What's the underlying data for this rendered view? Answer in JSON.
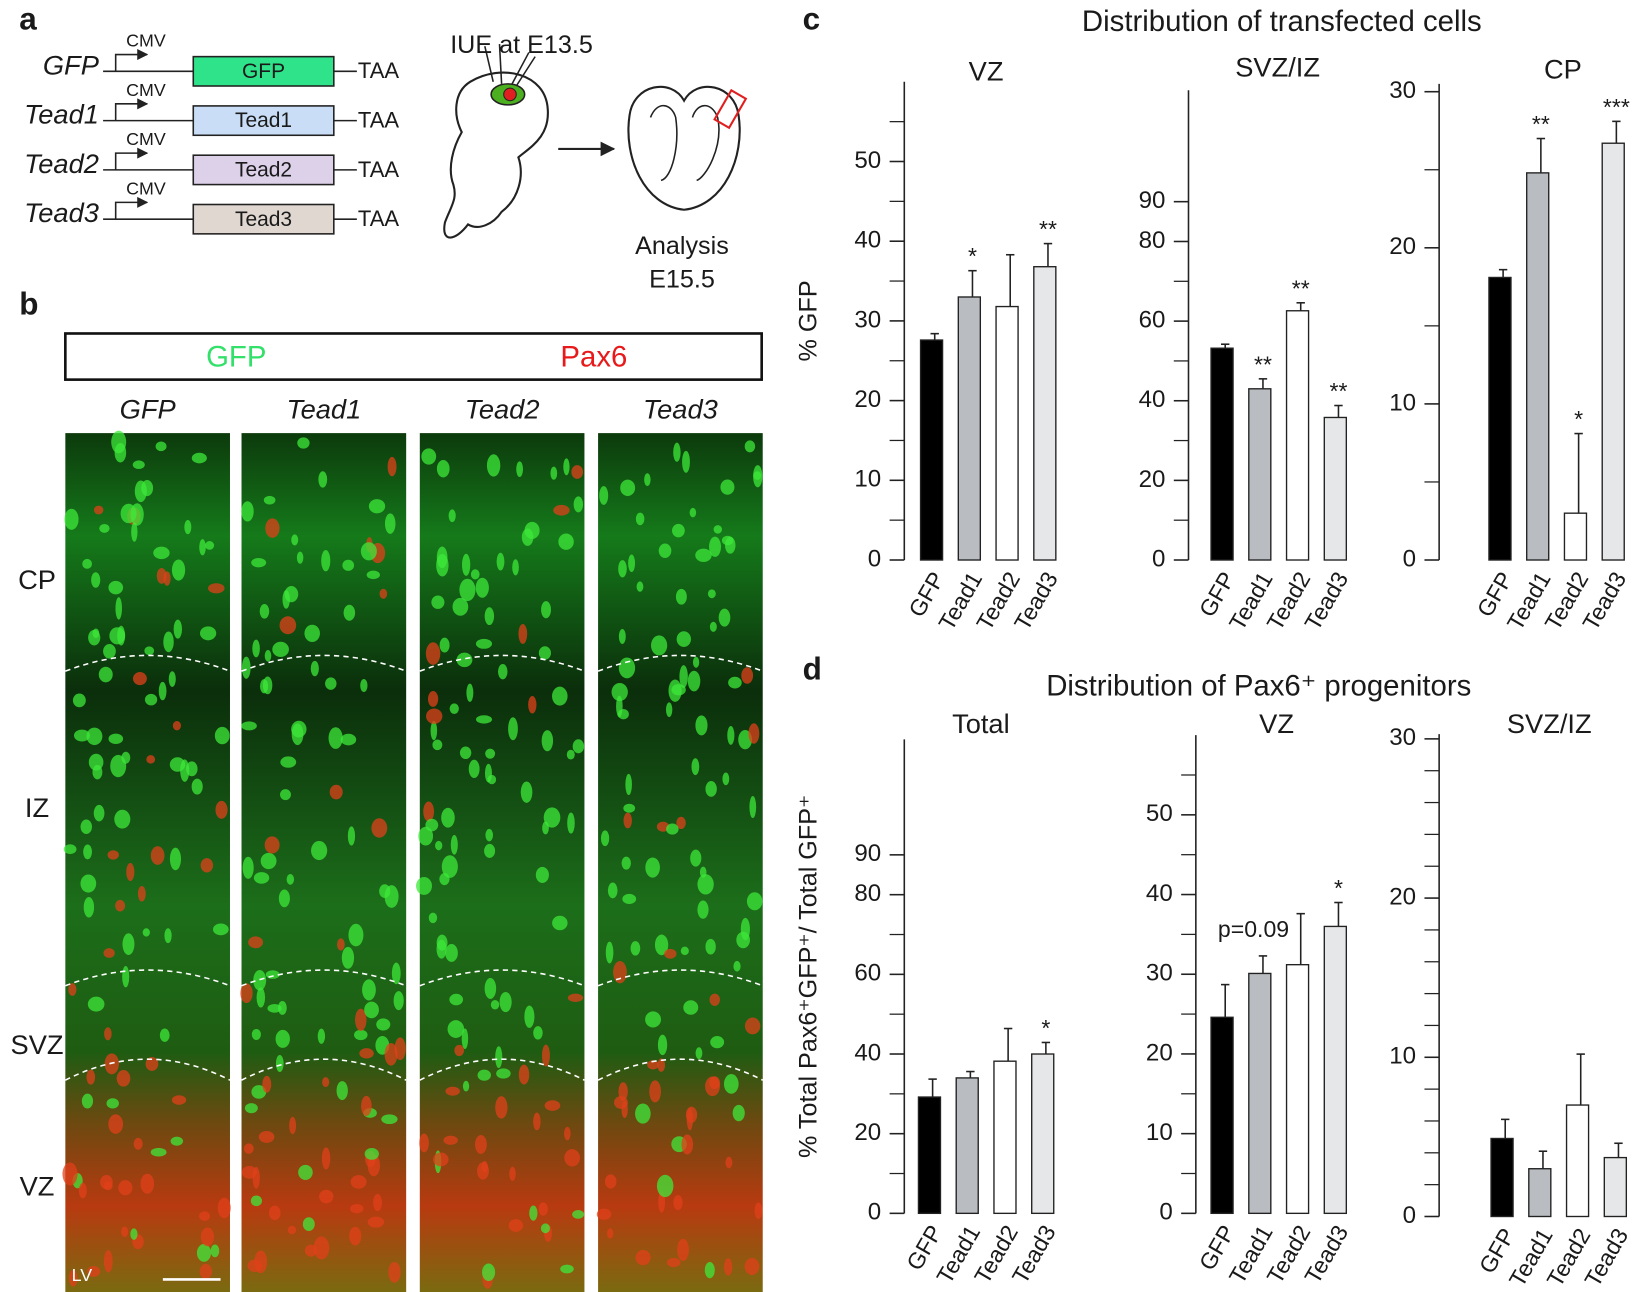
{
  "panel_labels": [
    "a",
    "b",
    "c",
    "d"
  ],
  "constructs": [
    {
      "name": "GFP",
      "promoter": "CMV",
      "gene": "GFP",
      "stop": "TAA",
      "color": "#2ee38a"
    },
    {
      "name": "Tead1",
      "promoter": "CMV",
      "gene": "Tead1",
      "stop": "TAA",
      "color": "#c9def6"
    },
    {
      "name": "Tead2",
      "promoter": "CMV",
      "gene": "Tead2",
      "stop": "TAA",
      "color": "#ddd1ea"
    },
    {
      "name": "Tead3",
      "promoter": "CMV",
      "gene": "Tead3",
      "stop": "TAA",
      "color": "#dfd7d0"
    }
  ],
  "schematic": {
    "injection": "IUE at E13.5",
    "analysis": [
      "Analysis",
      "E15.5"
    ]
  },
  "micrographs": {
    "legend": [
      {
        "name": "GFP",
        "color": "#33e06a"
      },
      {
        "name": "Pax6",
        "color": "#e8191b"
      }
    ],
    "columns": [
      "GFP",
      "Tead1",
      "Tead2",
      "Tead3"
    ],
    "zones": [
      "CP",
      "IZ",
      "SVZ",
      "VZ"
    ],
    "ventricle": "LV"
  },
  "panel_titles": [
    "Distribution of transfected cells",
    "Distribution of Pax6⁺ progenitors"
  ],
  "chart_data": [
    {
      "type": "bar",
      "title": "VZ",
      "ylabel": "% GFP",
      "categories": [
        "GFP",
        "Tead1",
        "Tead2",
        "Tead3"
      ],
      "values": [
        27.6,
        33,
        31.8,
        36.8
      ],
      "errors": [
        0.8,
        3.3,
        6.5,
        2.9
      ],
      "annotations": [
        null,
        "*",
        null,
        "**"
      ],
      "colors": [
        "#000000",
        "#b9bdc1",
        "#ffffff",
        "#e6e7e8"
      ],
      "ylim": [
        0,
        60
      ],
      "yticks": [
        0,
        10,
        20,
        30,
        40,
        50
      ],
      "minor_yticks": [
        5,
        15,
        25,
        35,
        45,
        55
      ]
    },
    {
      "type": "bar",
      "title": "SVZ/IZ",
      "categories": [
        "GFP",
        "Tead1",
        "Tead2",
        "Tead3"
      ],
      "values": [
        53.2,
        43,
        62.6,
        35.8
      ],
      "errors": [
        1,
        2.5,
        2,
        3
      ],
      "annotations": [
        null,
        "**",
        "**",
        "**"
      ],
      "colors": [
        "#000000",
        "#b9bdc1",
        "#ffffff",
        "#e6e7e8"
      ],
      "ylim": [
        0,
        118
      ],
      "yticks": [
        0,
        20,
        40,
        60,
        80,
        90
      ],
      "minor_yticks": [
        10,
        30,
        50,
        70
      ]
    },
    {
      "type": "bar",
      "title": "CP",
      "categories": [
        "GFP",
        "Tead1",
        "Tead2",
        "Tead3"
      ],
      "values": [
        18.1,
        24.8,
        3,
        26.7
      ],
      "errors": [
        0.5,
        2.2,
        5.1,
        1.4
      ],
      "annotations": [
        null,
        "**",
        "*",
        "***"
      ],
      "colors": [
        "#000000",
        "#b9bdc1",
        "#ffffff",
        "#e6e7e8"
      ],
      "ylim": [
        0,
        30.5
      ],
      "yticks": [
        0,
        10,
        20,
        30
      ],
      "minor_yticks": [
        5,
        15,
        25
      ]
    },
    {
      "type": "bar",
      "title": "Total",
      "ylabel": "% Total Pax6⁺GFP⁺/ Total GFP⁺",
      "categories": [
        "GFP",
        "Tead1",
        "Tead2",
        "Tead3"
      ],
      "values": [
        29.2,
        34,
        38.2,
        40
      ],
      "errors": [
        4.5,
        1.6,
        8.2,
        2.9
      ],
      "annotations": [
        null,
        null,
        null,
        "*"
      ],
      "colors": [
        "#000000",
        "#b9bdc1",
        "#ffffff",
        "#e6e7e8"
      ],
      "ylim": [
        0,
        119
      ],
      "yticks": [
        0,
        20,
        40,
        60,
        80,
        90
      ],
      "minor_yticks": [
        10,
        30,
        50,
        70
      ]
    },
    {
      "type": "bar",
      "title": "VZ",
      "categories": [
        "GFP",
        "Tead1",
        "Tead2",
        "Tead3"
      ],
      "values": [
        24.6,
        30.1,
        31.2,
        36
      ],
      "errors": [
        4.1,
        2.2,
        6.4,
        3
      ],
      "annotations": [
        null,
        "p=0.09",
        null,
        "*"
      ],
      "colors": [
        "#000000",
        "#b9bdc1",
        "#ffffff",
        "#e6e7e8"
      ],
      "ylim": [
        0,
        60
      ],
      "yticks": [
        0,
        10,
        20,
        30,
        40,
        50
      ],
      "minor_yticks": [
        5,
        15,
        25,
        35,
        45,
        55
      ]
    },
    {
      "type": "bar",
      "title": "SVZ/IZ",
      "categories": [
        "GFP",
        "Tead1",
        "Tead2",
        "Tead3"
      ],
      "values": [
        4.9,
        3,
        7,
        3.7
      ],
      "errors": [
        1.2,
        1.1,
        3.2,
        0.9
      ],
      "annotations": [
        null,
        null,
        null,
        null
      ],
      "colors": [
        "#000000",
        "#b9bdc1",
        "#ffffff",
        "#e6e7e8"
      ],
      "ylim": [
        0,
        30.3
      ],
      "yticks": [
        0,
        10,
        20,
        30
      ],
      "minor_yticks": [
        2,
        4,
        6,
        8,
        12,
        14,
        16,
        18,
        22,
        24,
        26,
        28
      ]
    }
  ]
}
